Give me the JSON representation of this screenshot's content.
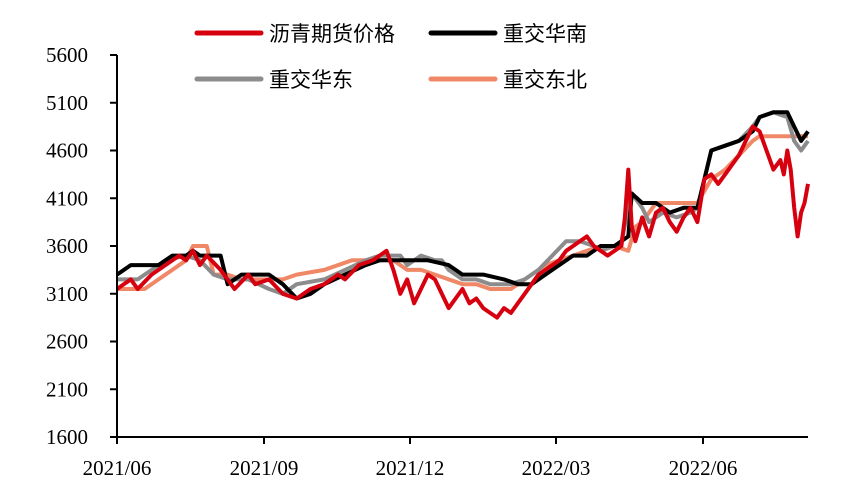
{
  "chart_data": {
    "type": "line",
    "title": "",
    "xlabel": "",
    "ylabel": "",
    "ylim": [
      1600,
      5600
    ],
    "yticks": [
      1600,
      2100,
      2600,
      3100,
      3600,
      4100,
      4600,
      5100,
      5600
    ],
    "xticks": [
      "2021/06",
      "2021/09",
      "2021/12",
      "2022/03",
      "2022/06"
    ],
    "x_range_frac_note": "x values are fractions of the axis width from 2021/06 (0) to axis end (1)",
    "grid": false,
    "legend_position": "top",
    "legend": [
      "沥青期货价格",
      "重交华南",
      "重交华东",
      "重交东北"
    ],
    "series": [
      {
        "name": "沥青期货价格",
        "color": "#d7000f",
        "points": [
          [
            0,
            3150
          ],
          [
            0.02,
            3250
          ],
          [
            0.03,
            3150
          ],
          [
            0.05,
            3300
          ],
          [
            0.07,
            3400
          ],
          [
            0.09,
            3500
          ],
          [
            0.1,
            3450
          ],
          [
            0.11,
            3550
          ],
          [
            0.12,
            3400
          ],
          [
            0.13,
            3500
          ],
          [
            0.15,
            3350
          ],
          [
            0.16,
            3250
          ],
          [
            0.17,
            3150
          ],
          [
            0.19,
            3300
          ],
          [
            0.2,
            3200
          ],
          [
            0.22,
            3250
          ],
          [
            0.24,
            3100
          ],
          [
            0.26,
            3050
          ],
          [
            0.28,
            3150
          ],
          [
            0.3,
            3200
          ],
          [
            0.32,
            3300
          ],
          [
            0.33,
            3250
          ],
          [
            0.35,
            3400
          ],
          [
            0.37,
            3450
          ],
          [
            0.38,
            3500
          ],
          [
            0.39,
            3550
          ],
          [
            0.4,
            3350
          ],
          [
            0.41,
            3100
          ],
          [
            0.42,
            3250
          ],
          [
            0.43,
            3000
          ],
          [
            0.44,
            3150
          ],
          [
            0.45,
            3300
          ],
          [
            0.46,
            3250
          ],
          [
            0.47,
            3100
          ],
          [
            0.48,
            2950
          ],
          [
            0.49,
            3050
          ],
          [
            0.5,
            3150
          ],
          [
            0.51,
            3000
          ],
          [
            0.52,
            3050
          ],
          [
            0.53,
            2950
          ],
          [
            0.54,
            2900
          ],
          [
            0.55,
            2850
          ],
          [
            0.56,
            2950
          ],
          [
            0.57,
            2900
          ],
          [
            0.58,
            3000
          ],
          [
            0.59,
            3100
          ],
          [
            0.6,
            3200
          ],
          [
            0.61,
            3300
          ],
          [
            0.62,
            3350
          ],
          [
            0.63,
            3400
          ],
          [
            0.64,
            3450
          ],
          [
            0.65,
            3550
          ],
          [
            0.66,
            3600
          ],
          [
            0.67,
            3650
          ],
          [
            0.68,
            3700
          ],
          [
            0.69,
            3600
          ],
          [
            0.7,
            3550
          ],
          [
            0.71,
            3500
          ],
          [
            0.72,
            3550
          ],
          [
            0.73,
            3600
          ],
          [
            0.735,
            3900
          ],
          [
            0.74,
            4400
          ],
          [
            0.745,
            3800
          ],
          [
            0.75,
            3650
          ],
          [
            0.76,
            3900
          ],
          [
            0.77,
            3700
          ],
          [
            0.78,
            3950
          ],
          [
            0.79,
            4000
          ],
          [
            0.8,
            3850
          ],
          [
            0.81,
            3750
          ],
          [
            0.82,
            3900
          ],
          [
            0.83,
            4000
          ],
          [
            0.84,
            3850
          ],
          [
            0.85,
            4300
          ],
          [
            0.86,
            4350
          ],
          [
            0.87,
            4250
          ],
          [
            0.88,
            4350
          ],
          [
            0.89,
            4450
          ],
          [
            0.9,
            4550
          ],
          [
            0.91,
            4700
          ],
          [
            0.92,
            4850
          ],
          [
            0.93,
            4800
          ],
          [
            0.94,
            4600
          ],
          [
            0.95,
            4400
          ],
          [
            0.96,
            4500
          ],
          [
            0.965,
            4350
          ],
          [
            0.97,
            4600
          ],
          [
            0.975,
            4400
          ],
          [
            0.98,
            4000
          ],
          [
            0.985,
            3700
          ],
          [
            0.99,
            3950
          ],
          [
            0.995,
            4050
          ],
          [
            1.0,
            4250
          ]
        ]
      },
      {
        "name": "重交华南",
        "color": "#000000",
        "points": [
          [
            0,
            3300
          ],
          [
            0.02,
            3400
          ],
          [
            0.06,
            3400
          ],
          [
            0.08,
            3500
          ],
          [
            0.1,
            3500
          ],
          [
            0.11,
            3550
          ],
          [
            0.12,
            3500
          ],
          [
            0.15,
            3500
          ],
          [
            0.16,
            3200
          ],
          [
            0.18,
            3300
          ],
          [
            0.22,
            3300
          ],
          [
            0.24,
            3200
          ],
          [
            0.26,
            3050
          ],
          [
            0.28,
            3100
          ],
          [
            0.3,
            3200
          ],
          [
            0.33,
            3300
          ],
          [
            0.36,
            3400
          ],
          [
            0.38,
            3450
          ],
          [
            0.4,
            3450
          ],
          [
            0.42,
            3450
          ],
          [
            0.45,
            3450
          ],
          [
            0.48,
            3400
          ],
          [
            0.5,
            3300
          ],
          [
            0.53,
            3300
          ],
          [
            0.56,
            3250
          ],
          [
            0.58,
            3200
          ],
          [
            0.6,
            3200
          ],
          [
            0.62,
            3300
          ],
          [
            0.64,
            3400
          ],
          [
            0.66,
            3500
          ],
          [
            0.68,
            3500
          ],
          [
            0.7,
            3600
          ],
          [
            0.72,
            3600
          ],
          [
            0.74,
            3700
          ],
          [
            0.745,
            4150
          ],
          [
            0.76,
            4050
          ],
          [
            0.78,
            4050
          ],
          [
            0.8,
            3950
          ],
          [
            0.82,
            4000
          ],
          [
            0.84,
            4000
          ],
          [
            0.85,
            4300
          ],
          [
            0.86,
            4600
          ],
          [
            0.88,
            4650
          ],
          [
            0.9,
            4700
          ],
          [
            0.92,
            4800
          ],
          [
            0.93,
            4950
          ],
          [
            0.95,
            5000
          ],
          [
            0.97,
            5000
          ],
          [
            0.98,
            4850
          ],
          [
            0.99,
            4700
          ],
          [
            1.0,
            4800
          ]
        ]
      },
      {
        "name": "重交华东",
        "color": "#8c8c8c",
        "points": [
          [
            0,
            3250
          ],
          [
            0.03,
            3250
          ],
          [
            0.05,
            3350
          ],
          [
            0.07,
            3450
          ],
          [
            0.1,
            3500
          ],
          [
            0.12,
            3450
          ],
          [
            0.14,
            3300
          ],
          [
            0.16,
            3250
          ],
          [
            0.19,
            3250
          ],
          [
            0.22,
            3150
          ],
          [
            0.24,
            3100
          ],
          [
            0.26,
            3200
          ],
          [
            0.3,
            3250
          ],
          [
            0.33,
            3350
          ],
          [
            0.36,
            3450
          ],
          [
            0.38,
            3500
          ],
          [
            0.41,
            3500
          ],
          [
            0.42,
            3400
          ],
          [
            0.44,
            3500
          ],
          [
            0.46,
            3450
          ],
          [
            0.47,
            3450
          ],
          [
            0.48,
            3350
          ],
          [
            0.5,
            3250
          ],
          [
            0.52,
            3250
          ],
          [
            0.54,
            3200
          ],
          [
            0.57,
            3200
          ],
          [
            0.59,
            3250
          ],
          [
            0.61,
            3350
          ],
          [
            0.63,
            3500
          ],
          [
            0.65,
            3650
          ],
          [
            0.67,
            3650
          ],
          [
            0.69,
            3600
          ],
          [
            0.7,
            3550
          ],
          [
            0.72,
            3600
          ],
          [
            0.73,
            3650
          ],
          [
            0.745,
            4150
          ],
          [
            0.76,
            4000
          ],
          [
            0.77,
            3850
          ],
          [
            0.79,
            3950
          ],
          [
            0.81,
            3900
          ],
          [
            0.83,
            3950
          ],
          [
            0.84,
            4000
          ],
          [
            0.85,
            4300
          ],
          [
            0.86,
            4600
          ],
          [
            0.88,
            4650
          ],
          [
            0.9,
            4700
          ],
          [
            0.92,
            4850
          ],
          [
            0.93,
            4950
          ],
          [
            0.95,
            5000
          ],
          [
            0.97,
            4950
          ],
          [
            0.98,
            4700
          ],
          [
            0.99,
            4600
          ],
          [
            1.0,
            4700
          ]
        ]
      },
      {
        "name": "重交东北",
        "color": "#f08868",
        "points": [
          [
            0,
            3150
          ],
          [
            0.04,
            3150
          ],
          [
            0.06,
            3250
          ],
          [
            0.08,
            3350
          ],
          [
            0.1,
            3450
          ],
          [
            0.11,
            3600
          ],
          [
            0.13,
            3600
          ],
          [
            0.14,
            3300
          ],
          [
            0.16,
            3300
          ],
          [
            0.18,
            3250
          ],
          [
            0.2,
            3250
          ],
          [
            0.24,
            3250
          ],
          [
            0.26,
            3300
          ],
          [
            0.3,
            3350
          ],
          [
            0.34,
            3450
          ],
          [
            0.38,
            3450
          ],
          [
            0.4,
            3450
          ],
          [
            0.42,
            3350
          ],
          [
            0.44,
            3350
          ],
          [
            0.46,
            3300
          ],
          [
            0.48,
            3250
          ],
          [
            0.5,
            3200
          ],
          [
            0.52,
            3200
          ],
          [
            0.54,
            3150
          ],
          [
            0.57,
            3150
          ],
          [
            0.59,
            3250
          ],
          [
            0.6,
            3300
          ],
          [
            0.62,
            3400
          ],
          [
            0.64,
            3450
          ],
          [
            0.66,
            3500
          ],
          [
            0.68,
            3550
          ],
          [
            0.7,
            3600
          ],
          [
            0.72,
            3600
          ],
          [
            0.74,
            3550
          ],
          [
            0.75,
            3800
          ],
          [
            0.76,
            3850
          ],
          [
            0.78,
            4050
          ],
          [
            0.82,
            4050
          ],
          [
            0.84,
            4050
          ],
          [
            0.86,
            4300
          ],
          [
            0.88,
            4400
          ],
          [
            0.9,
            4550
          ],
          [
            0.92,
            4700
          ],
          [
            0.93,
            4750
          ],
          [
            0.95,
            4750
          ],
          [
            0.97,
            4750
          ],
          [
            1.0,
            4750
          ]
        ]
      }
    ]
  }
}
